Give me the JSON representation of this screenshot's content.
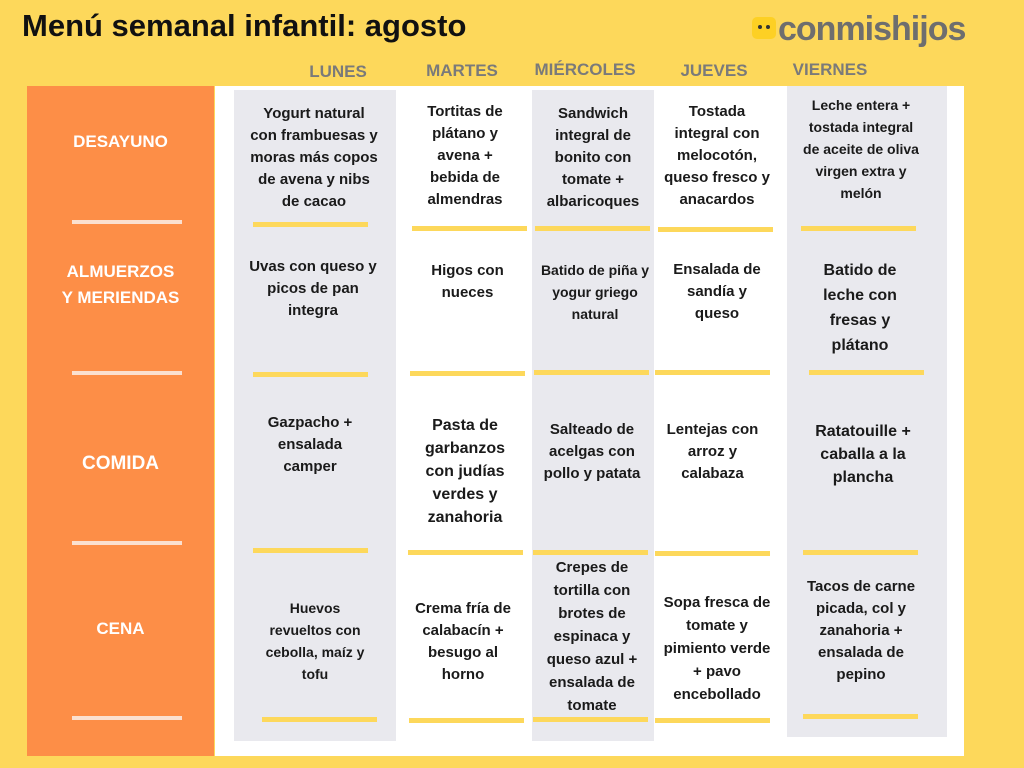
{
  "title": "Menú semanal infantil: agosto",
  "logo": {
    "text": "conmishijos"
  },
  "days": [
    "LUNES",
    "MARTES",
    "MIÉRCOLES",
    "JUEVES",
    "VIERNES"
  ],
  "meals": [
    "DESAYUNO",
    "ALMUERZOS Y MERIENDAS",
    "COMIDA",
    "CENA"
  ],
  "menu": [
    [
      "Yogurt natural con frambuesas y moras más copos de avena y nibs de cacao",
      "Tortitas de plátano y avena + bebida de almendras",
      "Sandwich integral de bonito con tomate + albaricoques",
      "Tostada integral con melocotón, queso fresco y anacardos",
      "Leche entera + tostada integral de aceite de oliva virgen extra y melón"
    ],
    [
      "Uvas con queso y picos de pan integra",
      "Higos con nueces",
      "Batido de piña y yogur griego natural",
      "Ensalada de sandía y queso",
      "Batido de leche con fresas y plátano"
    ],
    [
      "Gazpacho + ensalada camper",
      "Pasta de garbanzos con judías verdes y zanahoria",
      "Salteado de acelgas con pollo y patata",
      "Lentejas con arroz y calabaza",
      "Ratatouille + caballa a la plancha"
    ],
    [
      "Huevos revueltos con cebolla, maíz y tofu",
      "Crema fría de calabacín + besugo al horno",
      "Crepes de tortilla con brotes de espinaca y queso azul + ensalada de tomate",
      "Sopa fresca de tomate y pimiento verde + pavo encebollado",
      "Tacos de carne picada, col y zanahoria + ensalada de pepino"
    ]
  ],
  "colors": {
    "background": "#fdd85b",
    "sidebar": "#fd8e47",
    "column_shade": "#e9e9ee",
    "underline": "#fdd85b",
    "logo_text": "#6e6e6e"
  }
}
